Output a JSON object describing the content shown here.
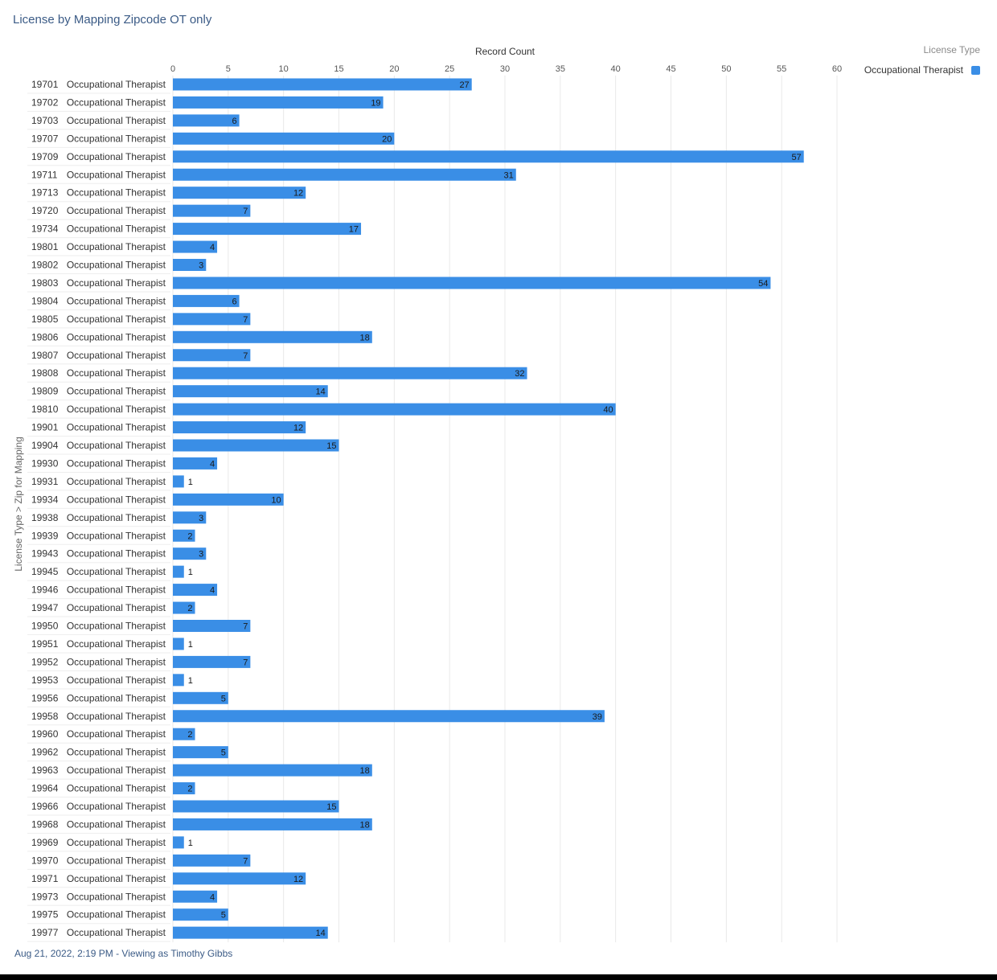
{
  "header": {
    "title": "License by Mapping Zipcode OT only"
  },
  "footer": {
    "text": "Aug 21, 2022, 2:19 PM - Viewing as Timothy Gibbs"
  },
  "colors": {
    "bar": "#3a8ee6",
    "grid": "#e9e9e9",
    "row_line": "#eeeeee"
  },
  "chart_data": {
    "type": "bar",
    "orientation": "horizontal",
    "xlabel": "Record Count",
    "ylabel": "License Type  >  Zip for Mapping",
    "xlim": [
      0,
      60
    ],
    "xticks": [
      0,
      5,
      10,
      15,
      20,
      25,
      30,
      35,
      40,
      45,
      50,
      55,
      60
    ],
    "grid": true,
    "legend": {
      "title": "License Type",
      "position": "top-right",
      "entries": [
        "Occupational Therapist"
      ]
    },
    "categories": [
      {
        "zip": "19701",
        "type": "Occupational Therapist"
      },
      {
        "zip": "19702",
        "type": "Occupational Therapist"
      },
      {
        "zip": "19703",
        "type": "Occupational Therapist"
      },
      {
        "zip": "19707",
        "type": "Occupational Therapist"
      },
      {
        "zip": "19709",
        "type": "Occupational Therapist"
      },
      {
        "zip": "19711",
        "type": "Occupational Therapist"
      },
      {
        "zip": "19713",
        "type": "Occupational Therapist"
      },
      {
        "zip": "19720",
        "type": "Occupational Therapist"
      },
      {
        "zip": "19734",
        "type": "Occupational Therapist"
      },
      {
        "zip": "19801",
        "type": "Occupational Therapist"
      },
      {
        "zip": "19802",
        "type": "Occupational Therapist"
      },
      {
        "zip": "19803",
        "type": "Occupational Therapist"
      },
      {
        "zip": "19804",
        "type": "Occupational Therapist"
      },
      {
        "zip": "19805",
        "type": "Occupational Therapist"
      },
      {
        "zip": "19806",
        "type": "Occupational Therapist"
      },
      {
        "zip": "19807",
        "type": "Occupational Therapist"
      },
      {
        "zip": "19808",
        "type": "Occupational Therapist"
      },
      {
        "zip": "19809",
        "type": "Occupational Therapist"
      },
      {
        "zip": "19810",
        "type": "Occupational Therapist"
      },
      {
        "zip": "19901",
        "type": "Occupational Therapist"
      },
      {
        "zip": "19904",
        "type": "Occupational Therapist"
      },
      {
        "zip": "19930",
        "type": "Occupational Therapist"
      },
      {
        "zip": "19931",
        "type": "Occupational Therapist"
      },
      {
        "zip": "19934",
        "type": "Occupational Therapist"
      },
      {
        "zip": "19938",
        "type": "Occupational Therapist"
      },
      {
        "zip": "19939",
        "type": "Occupational Therapist"
      },
      {
        "zip": "19943",
        "type": "Occupational Therapist"
      },
      {
        "zip": "19945",
        "type": "Occupational Therapist"
      },
      {
        "zip": "19946",
        "type": "Occupational Therapist"
      },
      {
        "zip": "19947",
        "type": "Occupational Therapist"
      },
      {
        "zip": "19950",
        "type": "Occupational Therapist"
      },
      {
        "zip": "19951",
        "type": "Occupational Therapist"
      },
      {
        "zip": "19952",
        "type": "Occupational Therapist"
      },
      {
        "zip": "19953",
        "type": "Occupational Therapist"
      },
      {
        "zip": "19956",
        "type": "Occupational Therapist"
      },
      {
        "zip": "19958",
        "type": "Occupational Therapist"
      },
      {
        "zip": "19960",
        "type": "Occupational Therapist"
      },
      {
        "zip": "19962",
        "type": "Occupational Therapist"
      },
      {
        "zip": "19963",
        "type": "Occupational Therapist"
      },
      {
        "zip": "19964",
        "type": "Occupational Therapist"
      },
      {
        "zip": "19966",
        "type": "Occupational Therapist"
      },
      {
        "zip": "19968",
        "type": "Occupational Therapist"
      },
      {
        "zip": "19969",
        "type": "Occupational Therapist"
      },
      {
        "zip": "19970",
        "type": "Occupational Therapist"
      },
      {
        "zip": "19971",
        "type": "Occupational Therapist"
      },
      {
        "zip": "19973",
        "type": "Occupational Therapist"
      },
      {
        "zip": "19975",
        "type": "Occupational Therapist"
      },
      {
        "zip": "19977",
        "type": "Occupational Therapist"
      }
    ],
    "series": [
      {
        "name": "Occupational Therapist",
        "values": [
          27,
          19,
          6,
          20,
          57,
          31,
          12,
          7,
          17,
          4,
          3,
          54,
          6,
          7,
          18,
          7,
          32,
          14,
          40,
          12,
          15,
          4,
          1,
          10,
          3,
          2,
          3,
          1,
          4,
          2,
          7,
          1,
          7,
          1,
          5,
          39,
          2,
          5,
          18,
          2,
          15,
          18,
          1,
          7,
          12,
          4,
          5,
          14
        ]
      }
    ]
  }
}
